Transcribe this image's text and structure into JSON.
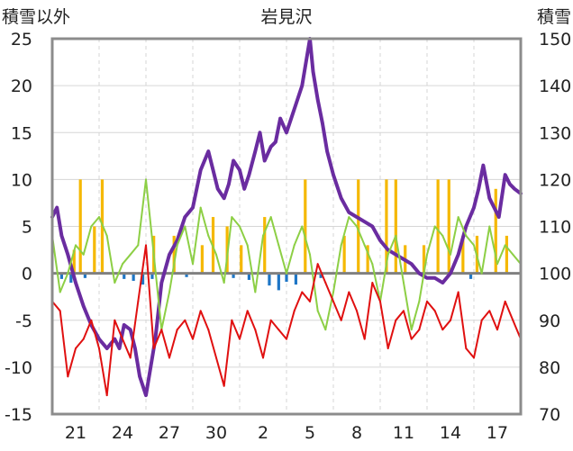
{
  "chart_data": {
    "type": "line",
    "title": "岩見沢",
    "left_axis_label": "積雪以外",
    "right_axis_label": "積雪",
    "left_ylim": [
      -15,
      25
    ],
    "left_ticks": [
      -15,
      -10,
      -5,
      0,
      5,
      10,
      15,
      20,
      25
    ],
    "right_ylim": [
      70,
      150
    ],
    "right_ticks": [
      70,
      80,
      90,
      100,
      110,
      120,
      130,
      140,
      150
    ],
    "x_ticks": [
      "21",
      "24",
      "27",
      "30",
      "2",
      "5",
      "8",
      "11",
      "14",
      "17"
    ],
    "x_tick_positions": [
      1.5,
      4.5,
      7.5,
      10.5,
      13.5,
      16.5,
      19.5,
      22.5,
      25.5,
      28.5
    ],
    "x_range": [
      0,
      30
    ],
    "grid": true,
    "series": [
      {
        "color": "#6a2ca0",
        "axis": "right",
        "x": [
          0,
          0.3,
          0.6,
          1,
          1.5,
          2,
          2.5,
          3,
          3.5,
          4,
          4.3,
          4.6,
          5,
          5.3,
          5.6,
          6,
          6.3,
          6.6,
          7,
          7.5,
          8,
          8.5,
          9,
          9.5,
          10,
          10.3,
          10.6,
          11,
          11.3,
          11.6,
          12,
          12.3,
          12.6,
          13,
          13.3,
          13.6,
          14,
          14.3,
          14.6,
          15,
          15.3,
          15.6,
          16,
          16.3,
          16.5,
          16.7,
          17,
          17.3,
          17.6,
          18,
          18.5,
          19,
          19.5,
          20,
          20.5,
          21,
          21.5,
          22,
          22.5,
          23,
          23.5,
          24,
          24.5,
          25,
          25.5,
          26,
          26.5,
          27,
          27.3,
          27.6,
          28,
          28.3,
          28.6,
          29,
          29.3,
          29.6,
          30
        ],
        "values": [
          112,
          114,
          108,
          104,
          98,
          93,
          89,
          86,
          84,
          86,
          84,
          89,
          88,
          84,
          78,
          74,
          80,
          86,
          98,
          104,
          107,
          112,
          114,
          122,
          126,
          122,
          118,
          116,
          119,
          124,
          122,
          118,
          121,
          126,
          130,
          124,
          127,
          128,
          133,
          130,
          133,
          136,
          140,
          146,
          150,
          143,
          137,
          132,
          126,
          121,
          116,
          113,
          112,
          111,
          110,
          107,
          105,
          104,
          103,
          102,
          100,
          99,
          99,
          98,
          100,
          104,
          110,
          114,
          118,
          123,
          116,
          114,
          112,
          121,
          119,
          118,
          117
        ]
      },
      {
        "color": "#8dcf45",
        "axis": "left",
        "x": [
          0,
          0.5,
          1,
          1.5,
          2,
          2.5,
          3,
          3.5,
          4,
          4.5,
          5,
          5.5,
          6,
          6.5,
          7,
          7.5,
          8,
          8.5,
          9,
          9.5,
          10,
          10.5,
          11,
          11.5,
          12,
          12.5,
          13,
          13.5,
          14,
          14.5,
          15,
          15.5,
          16,
          16.5,
          17,
          17.5,
          18,
          18.5,
          19,
          19.5,
          20,
          20.5,
          21,
          21.5,
          22,
          22.5,
          23,
          23.5,
          24,
          24.5,
          25,
          25.5,
          26,
          26.5,
          27,
          27.5,
          28,
          28.5,
          29,
          29.5,
          30
        ],
        "values": [
          4,
          -2,
          0,
          3,
          2,
          5,
          6,
          4,
          -1,
          1,
          2,
          3,
          10,
          2,
          -6,
          -2,
          3,
          5,
          1,
          7,
          4,
          2,
          -1,
          6,
          5,
          3,
          -2,
          4,
          6,
          3,
          0,
          3,
          5,
          2,
          -4,
          -6,
          -2,
          3,
          6,
          5,
          3,
          1,
          -3,
          2,
          4,
          -1,
          -6,
          -3,
          2,
          5,
          4,
          2,
          6,
          4,
          3,
          0,
          5,
          1,
          3,
          2,
          1
        ]
      },
      {
        "color": "#e01010",
        "axis": "left",
        "x": [
          0,
          0.5,
          1,
          1.5,
          2,
          2.5,
          3,
          3.5,
          4,
          4.5,
          5,
          5.5,
          6,
          6.5,
          7,
          7.5,
          8,
          8.5,
          9,
          9.5,
          10,
          10.5,
          11,
          11.5,
          12,
          12.5,
          13,
          13.5,
          14,
          14.5,
          15,
          15.5,
          16,
          16.5,
          17,
          17.5,
          18,
          18.5,
          19,
          19.5,
          20,
          20.5,
          21,
          21.5,
          22,
          22.5,
          23,
          23.5,
          24,
          24.5,
          25,
          25.5,
          26,
          26.5,
          27,
          27.5,
          28,
          28.5,
          29,
          29.5,
          30
        ],
        "values": [
          -3,
          -4,
          -11,
          -8,
          -7,
          -5,
          -8,
          -13,
          -5,
          -7,
          -9,
          -3,
          3,
          -8,
          -6,
          -9,
          -6,
          -5,
          -7,
          -4,
          -6,
          -9,
          -12,
          -5,
          -7,
          -4,
          -6,
          -9,
          -5,
          -6,
          -7,
          -4,
          -2,
          -3,
          1,
          -1,
          -3,
          -5,
          -2,
          -4,
          -7,
          -1,
          -3,
          -8,
          -5,
          -4,
          -7,
          -6,
          -3,
          -4,
          -6,
          -5,
          -2,
          -8,
          -9,
          -5,
          -4,
          -6,
          -3,
          -5,
          -7
        ]
      },
      {
        "color": "#f5b800",
        "axis": "left",
        "type": "bar",
        "x": [
          1.4,
          1.8,
          2.7,
          3.2,
          6.5,
          7.8,
          9.6,
          10.3,
          11.2,
          12.1,
          13.6,
          16.2,
          18.7,
          19.6,
          20.2,
          21.4,
          22.0,
          22.6,
          23.8,
          24.7,
          25.4,
          26.3,
          27.2,
          28.4,
          29.1
        ],
        "values": [
          2.5,
          10,
          5,
          10,
          4,
          4,
          3,
          6,
          5,
          3,
          6,
          10,
          4,
          10,
          3,
          10,
          10,
          3,
          3,
          10,
          10,
          4,
          4,
          9,
          4
        ]
      },
      {
        "color": "#1e76c6",
        "axis": "left",
        "type": "bar",
        "x": [
          0.6,
          1.2,
          2.1,
          4.6,
          5.2,
          5.8,
          6.4,
          7.1,
          8.6,
          11.6,
          12.6,
          13.9,
          14.5,
          15.0,
          15.6,
          17.2,
          26.8
        ],
        "values": [
          -0.6,
          -1,
          -0.5,
          -0.6,
          -0.8,
          -1.2,
          -0.6,
          -0.5,
          -0.4,
          -0.5,
          -0.7,
          -1.3,
          -1.8,
          -0.9,
          -1.2,
          -0.5,
          -0.6
        ]
      }
    ]
  }
}
